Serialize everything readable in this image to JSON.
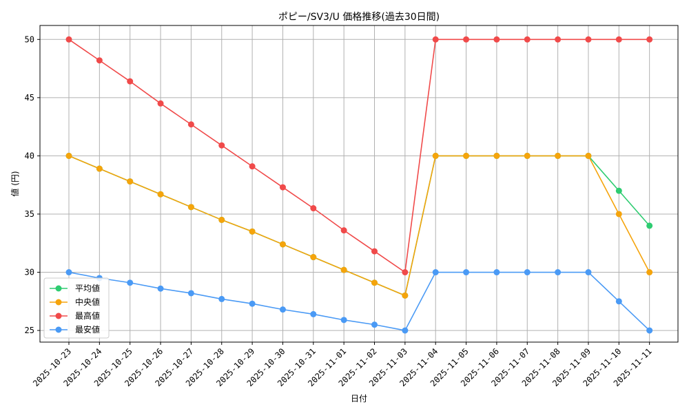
{
  "chart_data": {
    "type": "line",
    "title": "ポピー/SV3/U 価格推移(過去30日間)",
    "xlabel": "日付",
    "ylabel": "値 (円)",
    "categories": [
      "2025-10-23",
      "2025-10-24",
      "2025-10-25",
      "2025-10-26",
      "2025-10-27",
      "2025-10-28",
      "2025-10-29",
      "2025-10-30",
      "2025-10-31",
      "2025-11-01",
      "2025-11-02",
      "2025-11-03",
      "2025-11-04",
      "2025-11-05",
      "2025-11-06",
      "2025-11-07",
      "2025-11-08",
      "2025-11-09",
      "2025-11-10",
      "2025-11-11"
    ],
    "ylim": [
      24,
      51.2
    ],
    "yticks": [
      25,
      30,
      35,
      40,
      45,
      50
    ],
    "grid": true,
    "legend_position": "lower-left",
    "series": [
      {
        "name": "平均値",
        "color": "#2ecc71",
        "values": [
          40,
          38.9,
          37.8,
          36.7,
          35.6,
          34.5,
          33.5,
          32.4,
          31.3,
          30.2,
          29.1,
          28,
          40,
          40,
          40,
          40,
          40,
          40,
          37,
          34
        ]
      },
      {
        "name": "中央値",
        "color": "#f5a40c",
        "values": [
          40,
          38.9,
          37.8,
          36.7,
          35.6,
          34.5,
          33.5,
          32.4,
          31.3,
          30.2,
          29.1,
          28,
          40,
          40,
          40,
          40,
          40,
          40,
          35,
          30
        ]
      },
      {
        "name": "最高値",
        "color": "#f04a4a",
        "values": [
          50,
          48.2,
          46.4,
          44.5,
          42.7,
          40.9,
          39.1,
          37.3,
          35.5,
          33.6,
          31.8,
          30,
          50,
          50,
          50,
          50,
          50,
          50,
          50,
          50
        ]
      },
      {
        "name": "最安値",
        "color": "#4a9af5",
        "values": [
          30,
          29.5,
          29.1,
          28.6,
          28.2,
          27.7,
          27.3,
          26.8,
          26.4,
          25.9,
          25.5,
          25,
          30,
          30,
          30,
          30,
          30,
          30,
          27.5,
          25
        ]
      }
    ]
  }
}
